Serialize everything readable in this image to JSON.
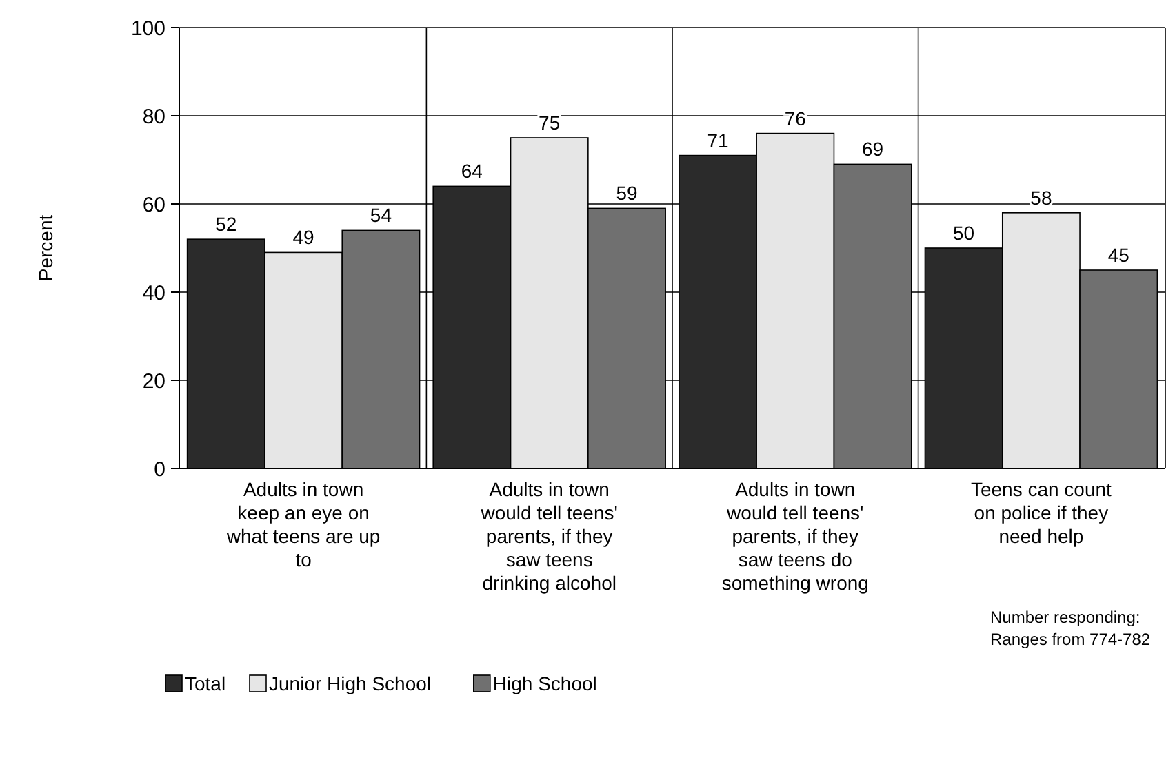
{
  "chart_data": {
    "type": "bar",
    "ylabel": "Percent",
    "categories": [
      "Adults in town keep an eye on what teens are up to",
      "Adults in town would tell teens' parents, if they saw teens drinking alcohol",
      "Adults in town would tell teens' parents, if they saw teens do something wrong",
      "Teens can count on police if they need help"
    ],
    "series": [
      {
        "name": "Total",
        "color": "#2b2b2b",
        "values": [
          52,
          64,
          71,
          50
        ]
      },
      {
        "name": "Junior High School",
        "color": "#e6e6e6",
        "values": [
          49,
          75,
          76,
          58
        ]
      },
      {
        "name": "High School",
        "color": "#707070",
        "values": [
          54,
          59,
          69,
          45
        ]
      }
    ],
    "ylim": [
      0,
      100
    ],
    "yticks": [
      0,
      20,
      40,
      60,
      80,
      100
    ],
    "grid": true,
    "data_labels": true,
    "legend": "bottom left",
    "annotations": [
      "Number responding: Ranges from 774-782"
    ]
  }
}
